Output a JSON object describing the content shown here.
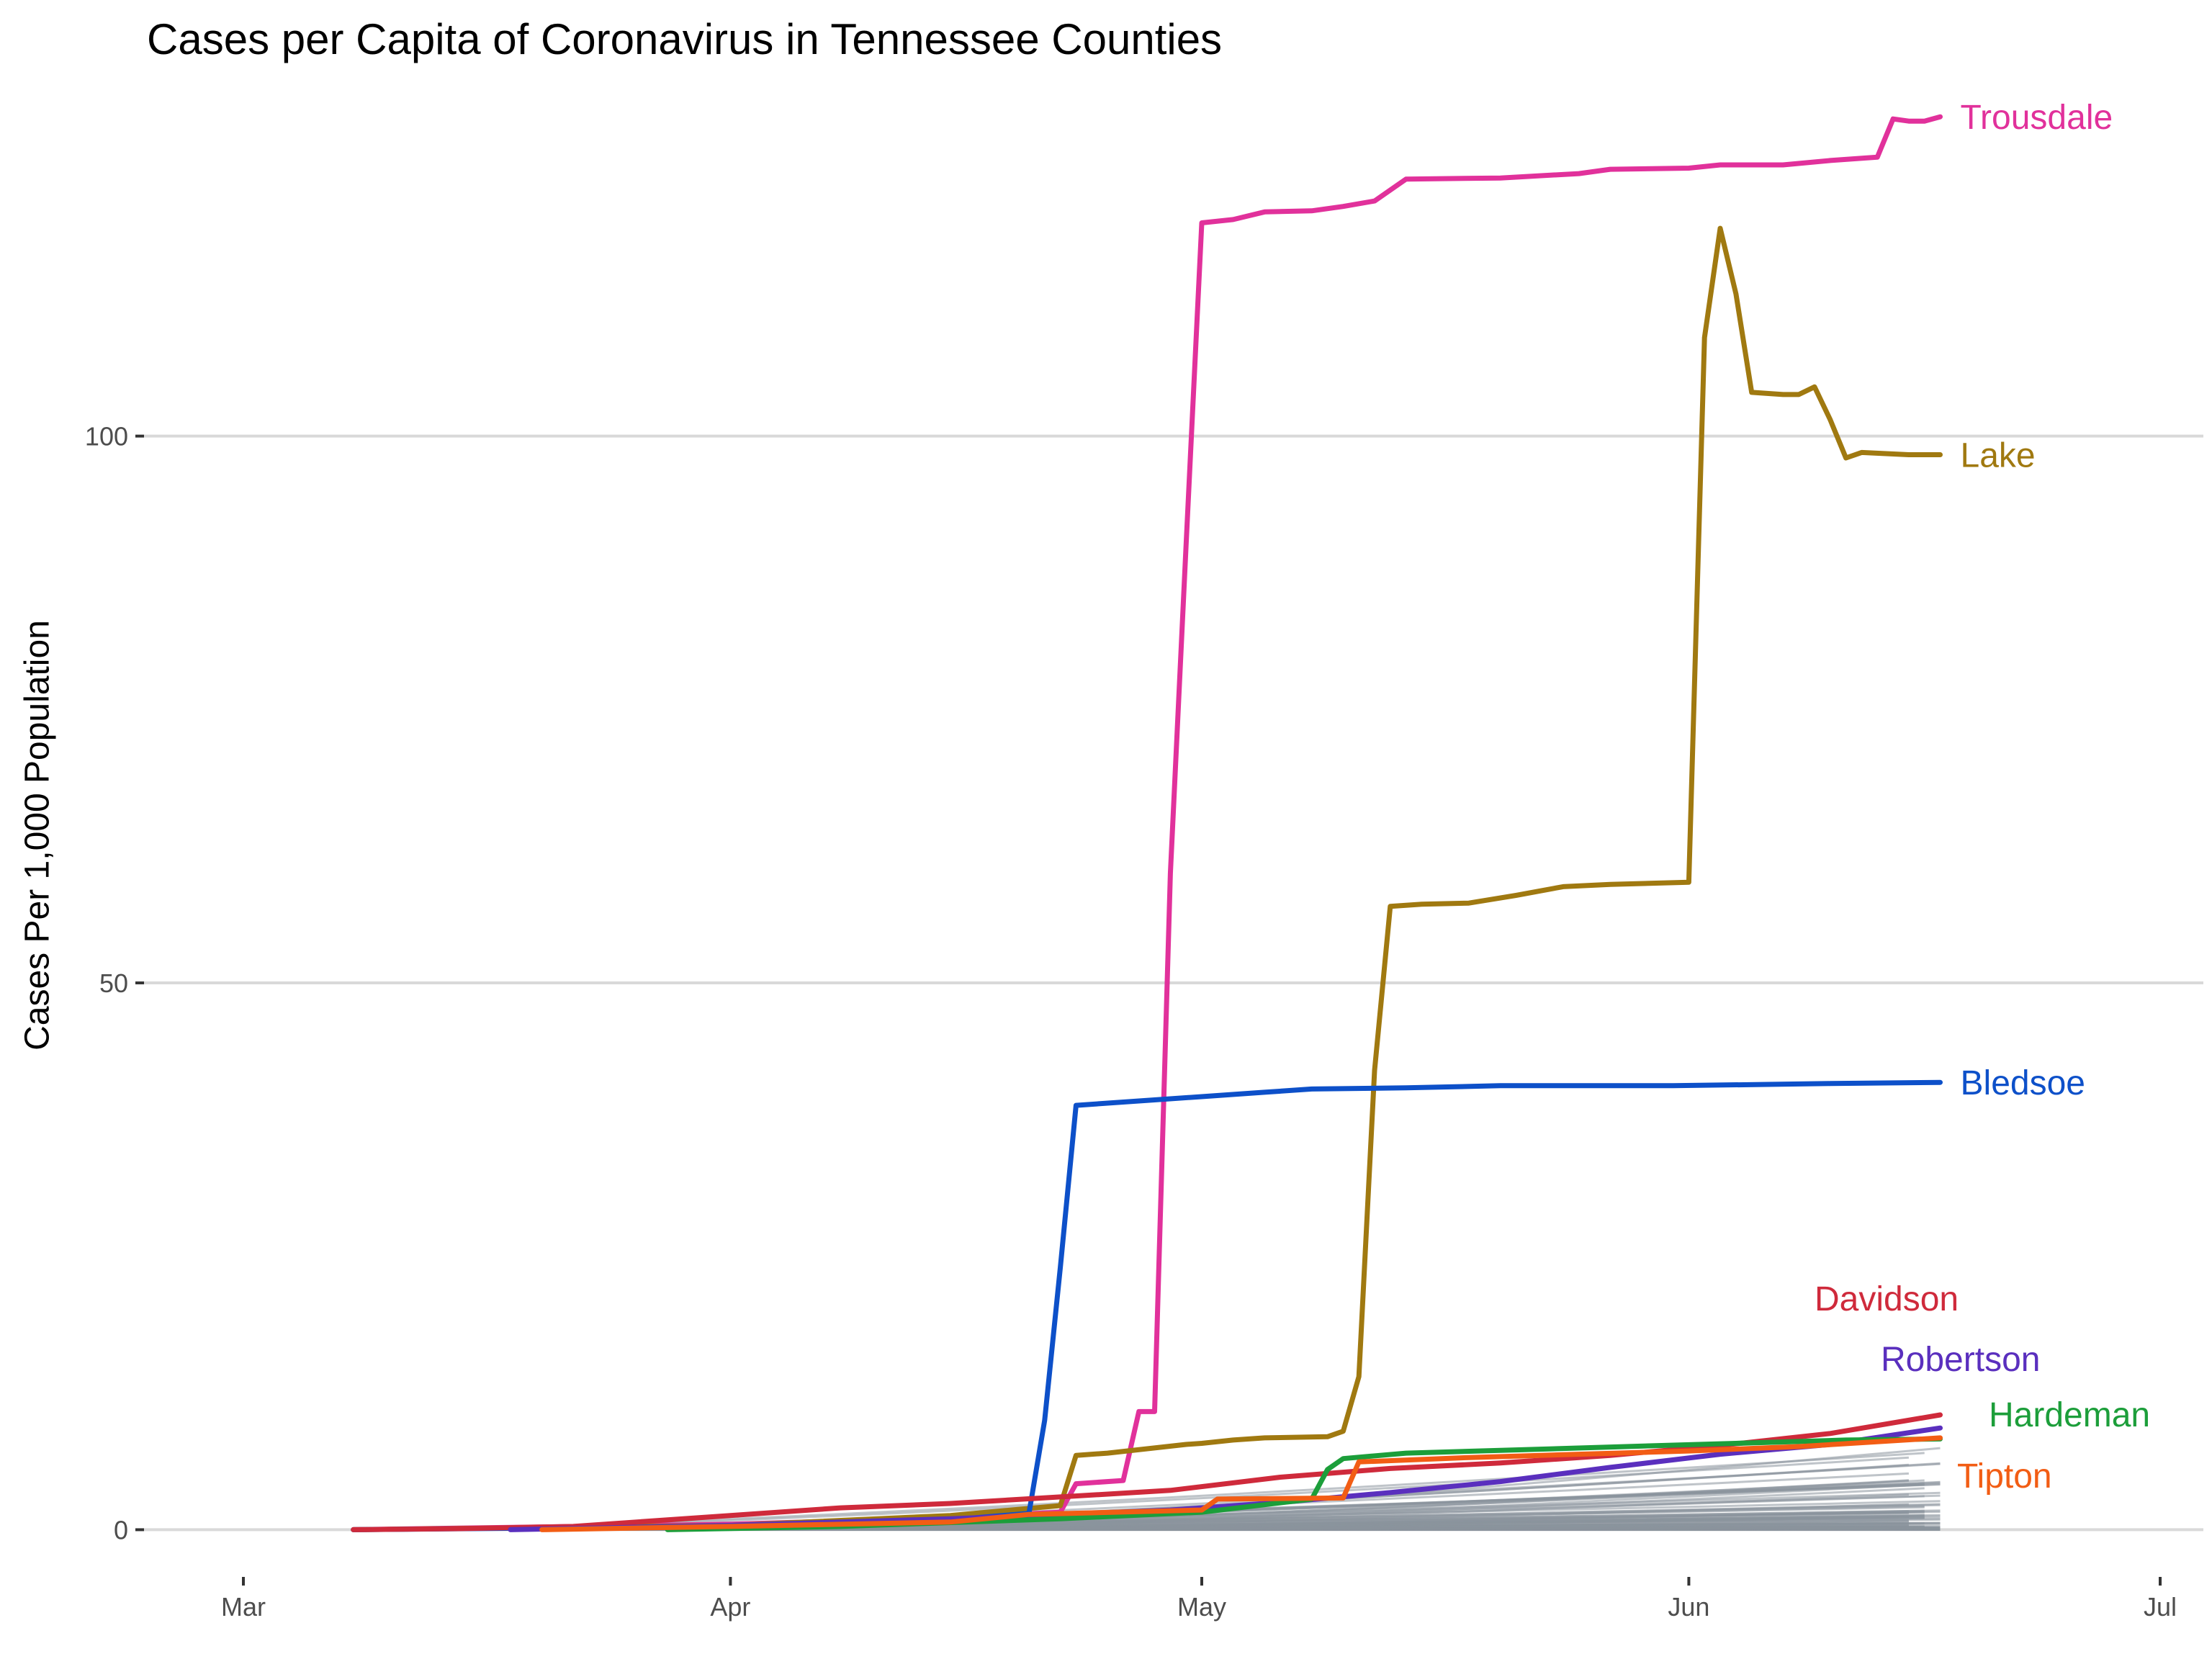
{
  "chart_data": {
    "type": "line",
    "title": "Cases per Capita of Coronavirus in Tennessee Counties",
    "xlabel": "",
    "ylabel": "Cases Per 1,000 Population",
    "x_range": [
      "2020-03-01",
      "2020-07-01"
    ],
    "ylim": [
      -3,
      130
    ],
    "x_ticks": [
      {
        "label": "Mar",
        "date": "2020-03-01"
      },
      {
        "label": "Apr",
        "date": "2020-04-01"
      },
      {
        "label": "May",
        "date": "2020-05-01"
      },
      {
        "label": "Jun",
        "date": "2020-06-01"
      },
      {
        "label": "Jul",
        "date": "2020-07-01"
      }
    ],
    "y_ticks": [
      0,
      50,
      100
    ],
    "grid": true,
    "legend": "none",
    "background_series_color": "#8a949c",
    "series": [
      {
        "name": "Trousdale",
        "color": "#e1319b",
        "points": [
          [
            "2020-03-08",
            0
          ],
          [
            "2020-04-01",
            0.5
          ],
          [
            "2020-04-15",
            1.1
          ],
          [
            "2020-04-22",
            1.6
          ],
          [
            "2020-04-23",
            4.2
          ],
          [
            "2020-04-26",
            4.5
          ],
          [
            "2020-04-27",
            10.8
          ],
          [
            "2020-04-28",
            10.8
          ],
          [
            "2020-04-29",
            60
          ],
          [
            "2020-04-30",
            90
          ],
          [
            "2020-05-01",
            119.5
          ],
          [
            "2020-05-03",
            119.8
          ],
          [
            "2020-05-05",
            120.5
          ],
          [
            "2020-05-08",
            120.6
          ],
          [
            "2020-05-10",
            121
          ],
          [
            "2020-05-12",
            121.5
          ],
          [
            "2020-05-14",
            123.5
          ],
          [
            "2020-05-20",
            123.6
          ],
          [
            "2020-05-25",
            124
          ],
          [
            "2020-05-27",
            124.4
          ],
          [
            "2020-06-01",
            124.5
          ],
          [
            "2020-06-03",
            124.8
          ],
          [
            "2020-06-07",
            124.8
          ],
          [
            "2020-06-10",
            125.2
          ],
          [
            "2020-06-13",
            125.5
          ],
          [
            "2020-06-14",
            129
          ],
          [
            "2020-06-15",
            128.8
          ],
          [
            "2020-06-16",
            128.8
          ],
          [
            "2020-06-17",
            129.2
          ]
        ]
      },
      {
        "name": "Lake",
        "color": "#a07910",
        "points": [
          [
            "2020-03-08",
            0
          ],
          [
            "2020-04-01",
            0.4
          ],
          [
            "2020-04-15",
            1.3
          ],
          [
            "2020-04-22",
            2.2
          ],
          [
            "2020-04-23",
            6.8
          ],
          [
            "2020-04-25",
            7
          ],
          [
            "2020-04-30",
            7.8
          ],
          [
            "2020-05-01",
            7.9
          ],
          [
            "2020-05-03",
            8.2
          ],
          [
            "2020-05-05",
            8.4
          ],
          [
            "2020-05-09",
            8.5
          ],
          [
            "2020-05-10",
            9
          ],
          [
            "2020-05-11",
            14
          ],
          [
            "2020-05-12",
            42
          ],
          [
            "2020-05-13",
            57
          ],
          [
            "2020-05-15",
            57.2
          ],
          [
            "2020-05-18",
            57.3
          ],
          [
            "2020-05-21",
            58
          ],
          [
            "2020-05-24",
            58.8
          ],
          [
            "2020-05-27",
            59
          ],
          [
            "2020-06-01",
            59.2
          ],
          [
            "2020-06-02",
            109
          ],
          [
            "2020-06-03",
            119
          ],
          [
            "2020-06-04",
            113
          ],
          [
            "2020-06-05",
            104
          ],
          [
            "2020-06-07",
            103.8
          ],
          [
            "2020-06-08",
            103.8
          ],
          [
            "2020-06-09",
            104.5
          ],
          [
            "2020-06-10",
            101.5
          ],
          [
            "2020-06-11",
            98
          ],
          [
            "2020-06-12",
            98.5
          ],
          [
            "2020-06-15",
            98.3
          ],
          [
            "2020-06-17",
            98.3
          ]
        ]
      },
      {
        "name": "Bledsoe",
        "color": "#0d50c9",
        "points": [
          [
            "2020-03-08",
            0
          ],
          [
            "2020-04-01",
            0.3
          ],
          [
            "2020-04-15",
            0.9
          ],
          [
            "2020-04-20",
            1.5
          ],
          [
            "2020-04-21",
            10
          ],
          [
            "2020-04-22",
            24
          ],
          [
            "2020-04-23",
            38.8
          ],
          [
            "2020-04-28",
            39.3
          ],
          [
            "2020-05-01",
            39.6
          ],
          [
            "2020-05-05",
            40
          ],
          [
            "2020-05-08",
            40.3
          ],
          [
            "2020-05-14",
            40.4
          ],
          [
            "2020-05-20",
            40.6
          ],
          [
            "2020-05-31",
            40.6
          ],
          [
            "2020-06-10",
            40.8
          ],
          [
            "2020-06-17",
            40.9
          ]
        ]
      },
      {
        "name": "Davidson",
        "color": "#cf2a3b",
        "points": [
          [
            "2020-03-08",
            0
          ],
          [
            "2020-03-15",
            0.1
          ],
          [
            "2020-03-22",
            0.3
          ],
          [
            "2020-04-01",
            1.3
          ],
          [
            "2020-04-08",
            2
          ],
          [
            "2020-04-15",
            2.4
          ],
          [
            "2020-04-22",
            3
          ],
          [
            "2020-04-29",
            3.6
          ],
          [
            "2020-05-06",
            4.8
          ],
          [
            "2020-05-13",
            5.6
          ],
          [
            "2020-05-20",
            6.1
          ],
          [
            "2020-05-27",
            6.8
          ],
          [
            "2020-06-03",
            7.7
          ],
          [
            "2020-06-10",
            8.8
          ],
          [
            "2020-06-17",
            10.5
          ]
        ]
      },
      {
        "name": "Robertson",
        "color": "#5a2fbe",
        "points": [
          [
            "2020-03-18",
            0
          ],
          [
            "2020-04-01",
            0.4
          ],
          [
            "2020-04-15",
            1
          ],
          [
            "2020-04-29",
            1.8
          ],
          [
            "2020-05-06",
            2.5
          ],
          [
            "2020-05-13",
            3.4
          ],
          [
            "2020-05-20",
            4.4
          ],
          [
            "2020-05-27",
            5.7
          ],
          [
            "2020-06-03",
            6.9
          ],
          [
            "2020-06-10",
            7.8
          ],
          [
            "2020-06-17",
            9.3
          ]
        ]
      },
      {
        "name": "Hardeman",
        "color": "#1c9e3a",
        "points": [
          [
            "2020-03-28",
            0
          ],
          [
            "2020-04-08",
            0.3
          ],
          [
            "2020-04-22",
            1
          ],
          [
            "2020-05-01",
            1.6
          ],
          [
            "2020-05-08",
            2.8
          ],
          [
            "2020-05-09",
            5.5
          ],
          [
            "2020-05-10",
            6.5
          ],
          [
            "2020-05-14",
            7
          ],
          [
            "2020-05-21",
            7.3
          ],
          [
            "2020-05-28",
            7.6
          ],
          [
            "2020-06-04",
            7.9
          ],
          [
            "2020-06-11",
            8.2
          ],
          [
            "2020-06-17",
            8.3
          ]
        ]
      },
      {
        "name": "Tipton",
        "color": "#f25d14",
        "points": [
          [
            "2020-03-20",
            0
          ],
          [
            "2020-04-01",
            0.3
          ],
          [
            "2020-04-15",
            0.7
          ],
          [
            "2020-04-20",
            1.4
          ],
          [
            "2020-05-01",
            1.8
          ],
          [
            "2020-05-02",
            2.8
          ],
          [
            "2020-05-10",
            2.9
          ],
          [
            "2020-05-11",
            6.2
          ],
          [
            "2020-05-18",
            6.6
          ],
          [
            "2020-05-25",
            6.9
          ],
          [
            "2020-06-01",
            7.2
          ],
          [
            "2020-06-08",
            7.6
          ],
          [
            "2020-06-17",
            8.4
          ]
        ]
      }
    ]
  }
}
